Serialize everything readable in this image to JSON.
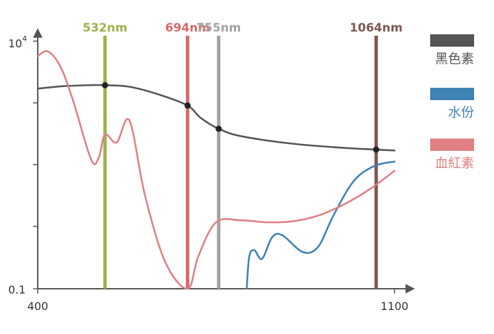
{
  "chart_data": {
    "type": "line",
    "title": "",
    "xlabel": "",
    "ylabel": "",
    "x_ticks": [
      "400",
      "1100"
    ],
    "y_ticks": {
      "top_base": "10",
      "top_exp": "4",
      "bottom": "0.1"
    },
    "y_scale": "log",
    "xlim": [
      400,
      1100
    ],
    "ylim": [
      0.1,
      10000
    ],
    "laser_lines": [
      {
        "label": "532nm",
        "x": 532,
        "color": "#9bb24a"
      },
      {
        "label": "694nm",
        "x": 694,
        "color": "#d9696b"
      },
      {
        "label": "755nm",
        "x": 755,
        "color": "#a3a3a3"
      },
      {
        "label": "1064nm",
        "x": 1064,
        "color": "#7a5a50"
      }
    ],
    "series": [
      {
        "name": "黑色素",
        "color": "#555555",
        "points": [
          [
            400,
            1100
          ],
          [
            450,
            1230
          ],
          [
            500,
            1290
          ],
          [
            532,
            1290
          ],
          [
            580,
            1200
          ],
          [
            640,
            820
          ],
          [
            694,
            500
          ],
          [
            720,
            280
          ],
          [
            755,
            170
          ],
          [
            800,
            120
          ],
          [
            900,
            85
          ],
          [
            1000,
            70
          ],
          [
            1100,
            62
          ]
        ],
        "markers_at": [
          532,
          694,
          755,
          1064
        ]
      },
      {
        "name": "水份",
        "color": "#3f82b4",
        "points": [
          [
            810,
            0.1
          ],
          [
            815,
            0.45
          ],
          [
            825,
            0.6
          ],
          [
            840,
            0.4
          ],
          [
            860,
            1.1
          ],
          [
            880,
            1.2
          ],
          [
            920,
            0.55
          ],
          [
            950,
            0.7
          ],
          [
            980,
            3
          ],
          [
            1020,
            15
          ],
          [
            1060,
            30
          ],
          [
            1100,
            37
          ]
        ]
      },
      {
        "name": "血紅素",
        "color": "#e07f84",
        "points": [
          [
            400,
            5000
          ],
          [
            420,
            6200
          ],
          [
            445,
            3000
          ],
          [
            470,
            600
          ],
          [
            505,
            40
          ],
          [
            520,
            45
          ],
          [
            532,
            130
          ],
          [
            555,
            90
          ],
          [
            580,
            250
          ],
          [
            610,
            8
          ],
          [
            650,
            0.35
          ],
          [
            694,
            0.1
          ],
          [
            715,
            0.45
          ],
          [
            750,
            2.2
          ],
          [
            800,
            2.4
          ],
          [
            850,
            2.2
          ],
          [
            900,
            2.3
          ],
          [
            950,
            3
          ],
          [
            1000,
            5
          ],
          [
            1050,
            10
          ],
          [
            1100,
            24
          ]
        ]
      }
    ],
    "legend_position": "right"
  }
}
